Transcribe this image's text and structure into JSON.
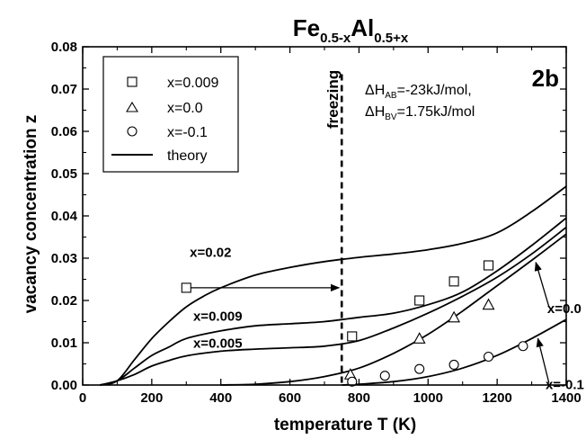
{
  "chart_data": {
    "type": "scatter",
    "title": {
      "base1": "Fe",
      "sub1": "0.5-x",
      "base2": "Al",
      "sub2": "0.5+x"
    },
    "xlabel": "temperature T (K)",
    "ylabel": "vacancy concentration z",
    "xlim": [
      0,
      1400
    ],
    "ylim": [
      0,
      0.08
    ],
    "xticks": [
      0,
      200,
      400,
      600,
      800,
      1000,
      1200,
      1400
    ],
    "yticks": [
      "0.00",
      "0.01",
      "0.02",
      "0.03",
      "0.04",
      "0.05",
      "0.06",
      "0.07",
      "0.08"
    ],
    "panel_label": "2b",
    "params": {
      "line1_delta": "Δ",
      "line1_H": "H",
      "line1_sub": "AB",
      "line1_value": "=-23kJ/mol,",
      "line2_delta": "Δ",
      "line2_H": "H",
      "line2_sub": "BV",
      "line2_value": "=1.75kJ/mol"
    },
    "freezing": {
      "label": "freezing",
      "x": 750
    },
    "legend": [
      {
        "marker": "square",
        "label": "x=0.009"
      },
      {
        "marker": "triangle",
        "label": "x=0.0"
      },
      {
        "marker": "circle",
        "label": "x=-0.1"
      },
      {
        "marker": "line",
        "label": "theory"
      }
    ],
    "series": [
      {
        "name": "x=0.009",
        "marker": "square",
        "points": [
          [
            300,
            0.023
          ],
          [
            780,
            0.0115
          ],
          [
            975,
            0.02
          ],
          [
            1075,
            0.0245
          ],
          [
            1175,
            0.0283
          ]
        ]
      },
      {
        "name": "x=0.0",
        "marker": "triangle",
        "points": [
          [
            775,
            0.0025
          ],
          [
            975,
            0.011
          ],
          [
            1075,
            0.016
          ],
          [
            1175,
            0.019
          ]
        ]
      },
      {
        "name": "x=-0.1",
        "marker": "circle",
        "points": [
          [
            780,
            0.0008
          ],
          [
            875,
            0.0022
          ],
          [
            975,
            0.0038
          ],
          [
            1075,
            0.0048
          ],
          [
            1175,
            0.0067
          ],
          [
            1275,
            0.0092
          ]
        ]
      }
    ],
    "theory_curves": [
      {
        "label": "x=0.02",
        "points": [
          [
            50,
            0
          ],
          [
            100,
            0.001
          ],
          [
            150,
            0.006
          ],
          [
            200,
            0.011
          ],
          [
            250,
            0.015
          ],
          [
            300,
            0.0185
          ],
          [
            350,
            0.021
          ],
          [
            400,
            0.023
          ],
          [
            500,
            0.026
          ],
          [
            600,
            0.0278
          ],
          [
            700,
            0.0292
          ],
          [
            800,
            0.0302
          ],
          [
            900,
            0.031
          ],
          [
            1000,
            0.032
          ],
          [
            1100,
            0.0335
          ],
          [
            1200,
            0.036
          ],
          [
            1300,
            0.041
          ],
          [
            1400,
            0.047
          ]
        ]
      },
      {
        "label": "x=0.009",
        "points": [
          [
            50,
            0
          ],
          [
            100,
            0.001
          ],
          [
            150,
            0.004
          ],
          [
            200,
            0.007
          ],
          [
            250,
            0.009
          ],
          [
            300,
            0.011
          ],
          [
            400,
            0.0128
          ],
          [
            500,
            0.014
          ],
          [
            600,
            0.0145
          ],
          [
            700,
            0.015
          ],
          [
            800,
            0.016
          ],
          [
            900,
            0.017
          ],
          [
            1000,
            0.019
          ],
          [
            1100,
            0.022
          ],
          [
            1200,
            0.027
          ],
          [
            1300,
            0.033
          ],
          [
            1400,
            0.0395
          ]
        ]
      },
      {
        "label": "x=0.005",
        "points": [
          [
            50,
            0
          ],
          [
            100,
            0.001
          ],
          [
            150,
            0.0025
          ],
          [
            200,
            0.0045
          ],
          [
            250,
            0.0058
          ],
          [
            300,
            0.0069
          ],
          [
            400,
            0.008
          ],
          [
            500,
            0.0085
          ],
          [
            600,
            0.0088
          ],
          [
            700,
            0.0092
          ],
          [
            800,
            0.0105
          ],
          [
            900,
            0.0135
          ],
          [
            1000,
            0.017
          ],
          [
            1100,
            0.021
          ],
          [
            1200,
            0.0255
          ],
          [
            1300,
            0.031
          ],
          [
            1400,
            0.0373
          ]
        ]
      },
      {
        "label": "x=0.0",
        "points": [
          [
            400,
            0
          ],
          [
            500,
            0.0002
          ],
          [
            600,
            0.0008
          ],
          [
            700,
            0.002
          ],
          [
            800,
            0.004
          ],
          [
            900,
            0.0075
          ],
          [
            1000,
            0.012
          ],
          [
            1100,
            0.0175
          ],
          [
            1200,
            0.0235
          ],
          [
            1300,
            0.0295
          ],
          [
            1400,
            0.0357
          ]
        ]
      },
      {
        "label": "x=-0.1",
        "points": [
          [
            750,
            0
          ],
          [
            800,
            0.0002
          ],
          [
            900,
            0.0008
          ],
          [
            1000,
            0.002
          ],
          [
            1100,
            0.004
          ],
          [
            1200,
            0.007
          ],
          [
            1300,
            0.011
          ],
          [
            1400,
            0.0155
          ]
        ]
      }
    ],
    "curve_labels": [
      {
        "text": "x=0.02",
        "x": 310,
        "y": 0.0303
      },
      {
        "text": "x=0.009",
        "x": 320,
        "y": 0.0152
      },
      {
        "text": "x=0.005",
        "x": 320,
        "y": 0.0088
      },
      {
        "text": "x=0.0",
        "x": 1345,
        "y": 0.017
      },
      {
        "text": "x=-0.1",
        "x": 1340,
        "y": -0.001
      }
    ]
  }
}
